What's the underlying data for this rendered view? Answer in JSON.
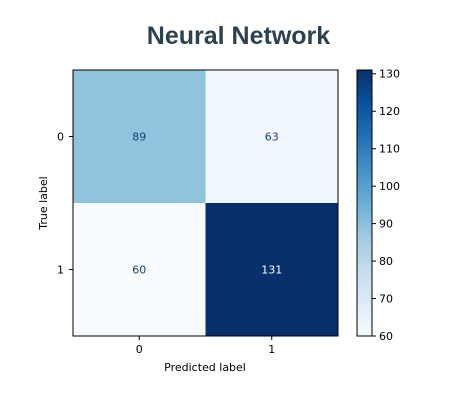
{
  "title": "Neural Network",
  "chart_data": {
    "type": "heatmap",
    "title": "Neural Network",
    "xlabel": "Predicted label",
    "ylabel": "True label",
    "x_categories": [
      "0",
      "1"
    ],
    "y_categories": [
      "0",
      "1"
    ],
    "matrix": [
      [
        89,
        63
      ],
      [
        60,
        131
      ]
    ],
    "colormap": "Blues",
    "colorbar": {
      "min": 60,
      "max": 131,
      "ticks": [
        60,
        70,
        80,
        90,
        100,
        110,
        120,
        130
      ],
      "ticklabels": [
        "60",
        "70",
        "80",
        "90",
        "100",
        "110",
        "120",
        "130"
      ]
    },
    "grid": false
  }
}
